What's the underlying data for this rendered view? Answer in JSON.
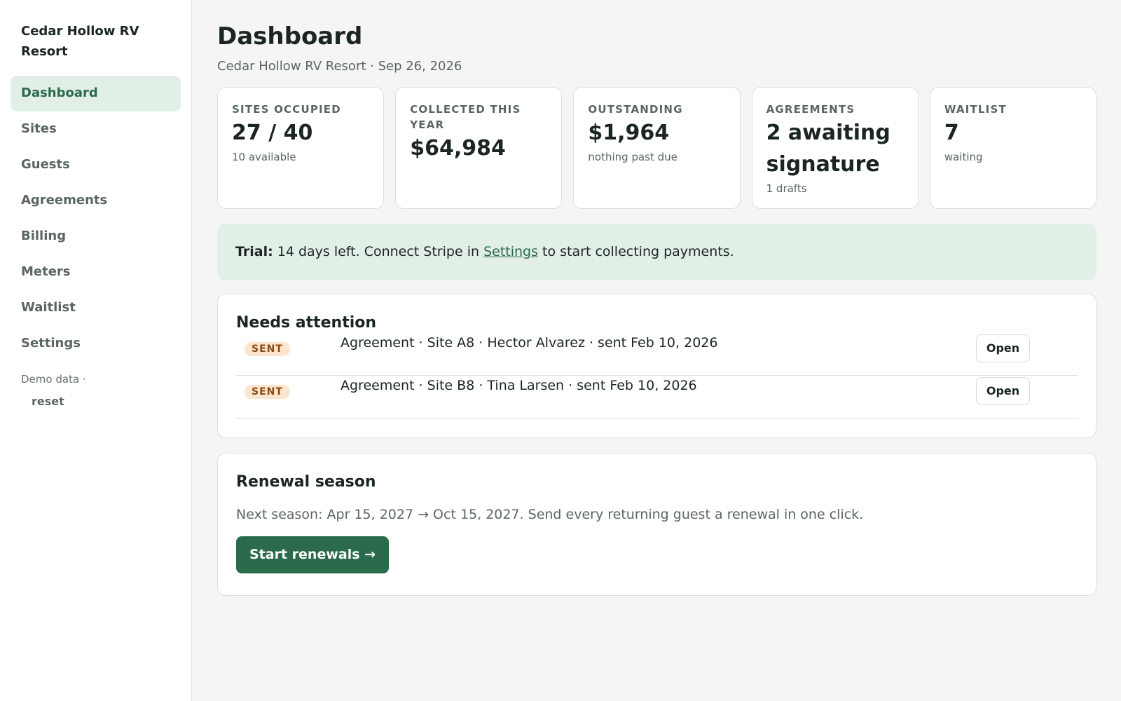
{
  "sidebar": {
    "brand": "Cedar Hollow RV Resort",
    "items": [
      {
        "label": "Dashboard",
        "active": true
      },
      {
        "label": "Sites"
      },
      {
        "label": "Guests"
      },
      {
        "label": "Agreements"
      },
      {
        "label": "Billing"
      },
      {
        "label": "Meters"
      },
      {
        "label": "Waitlist"
      },
      {
        "label": "Settings"
      }
    ],
    "demo_label": "Demo data ·",
    "demo_reset": "reset"
  },
  "header": {
    "title": "Dashboard",
    "subtitle": "Cedar Hollow RV Resort · Sep 26, 2026"
  },
  "stats": [
    {
      "label": "Sites occupied",
      "value": "27 / 40",
      "sub": "10 available"
    },
    {
      "label": "Collected this year",
      "value": "$64,984",
      "sub": ""
    },
    {
      "label": "Outstanding",
      "value": "$1,964",
      "sub": "nothing past due"
    },
    {
      "label": "Agreements",
      "value": "2 awaiting signature",
      "sub": "1 drafts"
    },
    {
      "label": "Waitlist",
      "value": "7",
      "sub": "waiting"
    }
  ],
  "trial": {
    "prefix": "Trial:",
    "text_before": " 14 days left. Connect Stripe in ",
    "link": "Settings",
    "text_after": " to start collecting payments."
  },
  "needs_attention": {
    "title": "Needs attention",
    "rows": [
      {
        "badge": "SENT",
        "text": "Agreement · Site A8 · Hector Alvarez · sent Feb 10, 2026",
        "button": "Open"
      },
      {
        "badge": "SENT",
        "text": "Agreement · Site B8 · Tina Larsen · sent Feb 10, 2026",
        "button": "Open"
      }
    ]
  },
  "renewal": {
    "title": "Renewal season",
    "text": "Next season: Apr 15, 2027 → Oct 15, 2027. Send every returning guest a renewal in one click.",
    "button": "Start renewals →"
  },
  "colors": {
    "accent": "#2b6b4c",
    "accent_light": "#e2efe7",
    "badge_bg": "#fbe5cf",
    "badge_text": "#8a4b12"
  }
}
